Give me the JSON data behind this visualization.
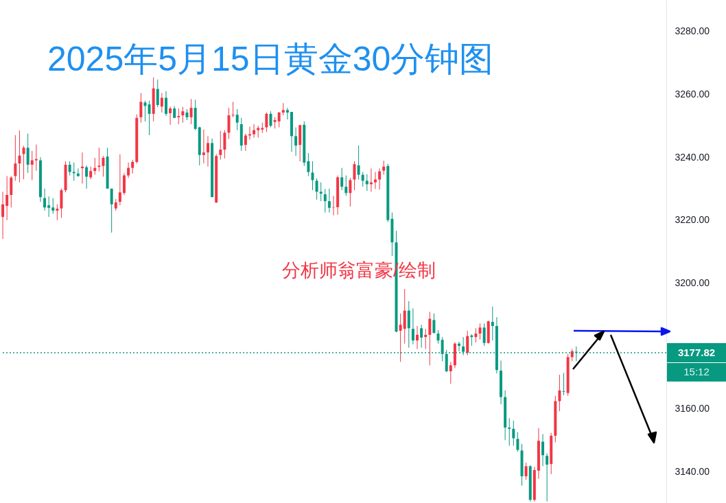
{
  "chart_data": {
    "type": "candlestick",
    "title": "2025年5月15日黄金30分钟图",
    "annotations": [
      "分析师翁富豪/绘制",
      "15:12"
    ],
    "categories": [
      null,
      null,
      null,
      null,
      null,
      null,
      null,
      null,
      null,
      null,
      null,
      null,
      null,
      null,
      null,
      null,
      null,
      null,
      null,
      null,
      null,
      null,
      null,
      null,
      null,
      null,
      null,
      null,
      null,
      null,
      null,
      null,
      null,
      null,
      null,
      null,
      null,
      null,
      null,
      null,
      null,
      null,
      null,
      null,
      null,
      null,
      null,
      null,
      null,
      null,
      null,
      null,
      null,
      null,
      null,
      null,
      null,
      null,
      null,
      null,
      null,
      null,
      null,
      null,
      null,
      null,
      null,
      null,
      null,
      null,
      null,
      null,
      null,
      null,
      null,
      null,
      null,
      null,
      null,
      null,
      null,
      null,
      null,
      null,
      null,
      null,
      null,
      null,
      null,
      null,
      null,
      null,
      null,
      null,
      null,
      null,
      null,
      null,
      null,
      null,
      null,
      null,
      null,
      null,
      null,
      null,
      null,
      null,
      null,
      null,
      null,
      null,
      null,
      null,
      null,
      null,
      null,
      null,
      null,
      null,
      null,
      null,
      null,
      null,
      null,
      null,
      null,
      null,
      null,
      null,
      null,
      null,
      null,
      null,
      null,
      null,
      null,
      null,
      null,
      null,
      null,
      null,
      null,
      null,
      null,
      null,
      null,
      null,
      null,
      null,
      null,
      null,
      null,
      null,
      null,
      null,
      null,
      null,
      null
    ],
    "ohlc": [
      [
        3221,
        3229,
        3214,
        3225
      ],
      [
        3224.5,
        3234,
        3220,
        3228
      ],
      [
        3228,
        3234,
        3224,
        3233.5
      ],
      [
        3234,
        3247,
        3232.5,
        3238
      ],
      [
        3238,
        3248.5,
        3232,
        3240.5
      ],
      [
        3241,
        3243.6,
        3233,
        3243
      ],
      [
        3243,
        3247.5,
        3235,
        3237.6
      ],
      [
        3237.6,
        3242,
        3232.7,
        3239
      ],
      [
        3239,
        3244,
        3235.7,
        3239.4
      ],
      [
        3239,
        3240,
        3225.8,
        3227.3
      ],
      [
        3227,
        3230,
        3223,
        3224
      ],
      [
        3224.7,
        3227.5,
        3221,
        3223.9
      ],
      [
        3224,
        3227,
        3222,
        3223
      ],
      [
        3223,
        3225,
        3220,
        3223.6
      ],
      [
        3223.7,
        3230,
        3220.7,
        3229.5
      ],
      [
        3229.5,
        3238.7,
        3228.8,
        3237.6
      ],
      [
        3237.6,
        3238.7,
        3234.2,
        3235.3
      ],
      [
        3235.3,
        3238.3,
        3232.5,
        3234.9
      ],
      [
        3234.8,
        3236.4,
        3233.8,
        3234
      ],
      [
        3236.5,
        3241.5,
        3231.6,
        3237
      ],
      [
        3236.8,
        3237.4,
        3230,
        3233.8
      ],
      [
        3233.6,
        3237,
        3233,
        3235.6
      ],
      [
        3235.6,
        3239.8,
        3234.4,
        3236.6
      ],
      [
        3236.9,
        3243,
        3235.5,
        3237.3
      ],
      [
        3237.2,
        3240.4,
        3233.8,
        3239.8
      ],
      [
        3240.2,
        3243,
        3230,
        3230
      ],
      [
        3230,
        3230,
        3216,
        3225
      ],
      [
        3223.7,
        3226.7,
        3223,
        3225.6
      ],
      [
        3225.8,
        3240.9,
        3224.7,
        3228.8
      ],
      [
        3228.6,
        3234.9,
        3228,
        3234.2
      ],
      [
        3234.2,
        3238.3,
        3233.4,
        3236.6
      ],
      [
        3236.6,
        3239.2,
        3234.8,
        3238.5
      ],
      [
        3238.5,
        3253.6,
        3238,
        3252.5
      ],
      [
        3252.7,
        3260.4,
        3251,
        3257.6
      ],
      [
        3257.4,
        3258,
        3251.4,
        3256.3
      ],
      [
        3256.8,
        3258,
        3247,
        3253.8
      ],
      [
        3253.8,
        3265.4,
        3251.4,
        3261.9
      ],
      [
        3261.7,
        3264.7,
        3255.9,
        3256.6
      ],
      [
        3256.1,
        3260.4,
        3254.2,
        3258.9
      ],
      [
        3258.9,
        3261,
        3253.1,
        3253.8
      ],
      [
        3254,
        3256.1,
        3250.3,
        3255.5
      ],
      [
        3255.5,
        3256.3,
        3252.5,
        3252.5
      ],
      [
        3252.7,
        3255.5,
        3250.5,
        3253.1
      ],
      [
        3253.3,
        3256,
        3251,
        3254.6
      ],
      [
        3254.2,
        3255.3,
        3251.8,
        3252.7
      ],
      [
        3252.7,
        3258.5,
        3250.5,
        3255.7
      ],
      [
        3255.7,
        3258.3,
        3248.6,
        3249
      ],
      [
        3249.5,
        3249.7,
        3237.4,
        3240.7
      ],
      [
        3240.7,
        3248.8,
        3238,
        3241.5
      ],
      [
        3241.5,
        3246.7,
        3237,
        3244.5
      ],
      [
        3244.5,
        3246,
        3227.3,
        3227.3
      ],
      [
        3225.6,
        3241,
        3225.4,
        3240.4
      ],
      [
        3240.7,
        3248.4,
        3239.2,
        3242.4
      ],
      [
        3242.4,
        3248.6,
        3239.6,
        3247.8
      ],
      [
        3247.8,
        3255.7,
        3245.8,
        3253.3
      ],
      [
        3253.3,
        3257.6,
        3252.7,
        3253.5
      ],
      [
        3253.5,
        3255.3,
        3248.6,
        3251
      ],
      [
        3250.5,
        3252.5,
        3242,
        3243.7
      ],
      [
        3243.9,
        3247.5,
        3242,
        3246.9
      ],
      [
        3246.9,
        3249.7,
        3245.6,
        3247.3
      ],
      [
        3247.3,
        3250.5,
        3246.2,
        3248.6
      ],
      [
        3248.6,
        3250,
        3246.2,
        3249.3
      ],
      [
        3248.8,
        3251,
        3247.7,
        3249.3
      ],
      [
        3249.5,
        3254.2,
        3248,
        3253.8
      ],
      [
        3253.8,
        3254.6,
        3249.5,
        3250
      ],
      [
        3251.2,
        3252.7,
        3249.1,
        3251.8
      ],
      [
        3251.4,
        3254.4,
        3249.5,
        3254.2
      ],
      [
        3254.2,
        3257.2,
        3253.3,
        3255
      ],
      [
        3255,
        3255.7,
        3252,
        3254.2
      ],
      [
        3254.4,
        3254.4,
        3241.7,
        3246.7
      ],
      [
        3246.7,
        3249.5,
        3240.4,
        3243.7
      ],
      [
        3243.9,
        3250.3,
        3238.7,
        3250.2
      ],
      [
        3250.3,
        3251.4,
        3237.2,
        3238.3
      ],
      [
        3238.7,
        3241.3,
        3234,
        3235.3
      ],
      [
        3235.1,
        3238.7,
        3229.5,
        3232.7
      ],
      [
        3232.5,
        3233.3,
        3226.5,
        3229
      ],
      [
        3229,
        3232,
        3226,
        3228.4
      ],
      [
        3228.2,
        3229.9,
        3222.4,
        3226
      ],
      [
        3226,
        3230,
        3222.4,
        3223.9
      ],
      [
        3224,
        3227.7,
        3221.5,
        3224.1
      ],
      [
        3224.1,
        3234.2,
        3221.7,
        3233.6
      ],
      [
        3233.6,
        3236.6,
        3229.5,
        3230.6
      ],
      [
        3230.6,
        3234.2,
        3227.7,
        3228.6
      ],
      [
        3228.6,
        3233.4,
        3224.3,
        3232.7
      ],
      [
        3232.9,
        3238.7,
        3229.5,
        3237.8
      ],
      [
        3237.4,
        3243.7,
        3232.9,
        3234.4
      ],
      [
        3234.4,
        3235.3,
        3230.6,
        3232.5
      ],
      [
        3232.5,
        3234.6,
        3229.3,
        3231.4
      ],
      [
        3231.4,
        3236.4,
        3229,
        3232
      ],
      [
        3232,
        3235.3,
        3229.9,
        3232.9
      ],
      [
        3232.9,
        3236.4,
        3229.7,
        3235.5
      ],
      [
        3235.7,
        3238.9,
        3234.4,
        3237
      ],
      [
        3237.2,
        3237.9,
        3219.4,
        3220
      ],
      [
        3220.4,
        3222.4,
        3208.6,
        3212.9
      ],
      [
        3212.9,
        3216.6,
        3184.3,
        3184.5
      ],
      [
        3184.8,
        3190.3,
        3174.9,
        3186.7
      ],
      [
        3185.4,
        3198.1,
        3180.7,
        3191.2
      ],
      [
        3191.2,
        3194.2,
        3179.4,
        3185.6
      ],
      [
        3185.4,
        3191.9,
        3180.5,
        3181.7
      ],
      [
        3181.7,
        3186.3,
        3179,
        3183.5
      ],
      [
        3185.6,
        3186.7,
        3179.4,
        3182.6
      ],
      [
        3182.8,
        3185.4,
        3179,
        3183.5
      ],
      [
        3183.5,
        3190.8,
        3173.8,
        3188.6
      ],
      [
        3188.2,
        3190.3,
        3183.9,
        3184.1
      ],
      [
        3183.9,
        3185,
        3180.7,
        3181.7
      ],
      [
        3181.9,
        3182.8,
        3175.1,
        3177.4
      ],
      [
        3177.4,
        3178.7,
        3171.6,
        3171.9
      ],
      [
        3171.9,
        3174.9,
        3167.9,
        3173.8
      ],
      [
        3173.8,
        3181.1,
        3172.9,
        3180.7
      ],
      [
        3180.7,
        3181.3,
        3178.3,
        3180
      ],
      [
        3179.8,
        3182.8,
        3177,
        3178.1
      ],
      [
        3177.8,
        3184.8,
        3177,
        3183.1
      ],
      [
        3183.3,
        3183.7,
        3180,
        3182.8
      ],
      [
        3182.8,
        3185.6,
        3181.1,
        3183.9
      ],
      [
        3183.9,
        3187.1,
        3182,
        3185.8
      ],
      [
        3185.8,
        3187.1,
        3180,
        3180.9
      ],
      [
        3180.9,
        3188,
        3180.7,
        3187.8
      ],
      [
        3187.6,
        3192.5,
        3181.7,
        3186.3
      ],
      [
        3186.3,
        3189.1,
        3171.2,
        3172.3
      ],
      [
        3172.1,
        3175.3,
        3161.4,
        3163.7
      ],
      [
        3163.7,
        3165.8,
        3150,
        3154
      ],
      [
        3154,
        3157,
        3148.2,
        3153.6
      ],
      [
        3153.6,
        3156.2,
        3148.2,
        3150.6
      ],
      [
        3150.4,
        3152.5,
        3146.3,
        3146.9
      ],
      [
        3146.7,
        3148.8,
        3135.5,
        3138.5
      ],
      [
        3138.5,
        3142.8,
        3137.4,
        3141.7
      ],
      [
        3141.7,
        3142,
        3130.5,
        3131
      ],
      [
        3131,
        3141.5,
        3130.5,
        3140.5
      ],
      [
        3140.3,
        3153.8,
        3137.7,
        3149.8
      ],
      [
        3149.5,
        3151.9,
        3141.7,
        3145.2
      ],
      [
        3145,
        3145.8,
        3130.5,
        3142.2
      ],
      [
        3142.4,
        3152.3,
        3139.2,
        3151.4
      ],
      [
        3151.4,
        3164.1,
        3149.3,
        3162.4
      ],
      [
        3162.4,
        3170.8,
        3159.2,
        3165.8
      ],
      [
        3165.6,
        3171.4,
        3164.3,
        3165.4
      ],
      [
        3165,
        3177.4,
        3164.1,
        3176.4
      ],
      [
        3176.4,
        3179,
        3175.1,
        3178.3
      ],
      [
        3178.1,
        3179.8,
        3175.1,
        3177.82
      ],
      null,
      null,
      null,
      null,
      null,
      null,
      null,
      null,
      null,
      null,
      null,
      null,
      null,
      null,
      null,
      null,
      null,
      null,
      null,
      null,
      null
    ],
    "colors": [
      "#f23645",
      "#f23645",
      "#f23645",
      "#f23645",
      "#f23645",
      "#f23645",
      "#089981",
      "#f23645",
      "#f23645",
      "#089981",
      "#089981",
      "#089981",
      "#089981",
      "#f23645",
      "#f23645",
      "#f23645",
      "#089981",
      "#089981",
      "#089981",
      "#f23645",
      "#089981",
      "#f23645",
      "#f23645",
      "#f23645",
      "#f23645",
      "#089981",
      "#089981",
      "#f23645",
      "#f23645",
      "#f23645",
      "#f23645",
      "#f23645",
      "#f23645",
      "#f23645",
      "#089981",
      "#089981",
      "#f23645",
      "#089981",
      "#f23645",
      "#089981",
      "#f23645",
      "#089981",
      "#f23645",
      "#f23645",
      "#089981",
      "#f23645",
      "#089981",
      "#089981",
      "#f23645",
      "#f23645",
      "#089981",
      "#f23645",
      "#f23645",
      "#f23645",
      "#f23645",
      "#f23645",
      "#089981",
      "#089981",
      "#f23645",
      "#f23645",
      "#f23645",
      "#f23645",
      "#f23645",
      "#f23645",
      "#089981",
      "#f23645",
      "#f23645",
      "#f23645",
      "#089981",
      "#089981",
      "#089981",
      "#f23645",
      "#089981",
      "#089981",
      "#089981",
      "#089981",
      "#089981",
      "#089981",
      "#089981",
      "#f23645",
      "#f23645",
      "#089981",
      "#089981",
      "#f23645",
      "#f23645",
      "#089981",
      "#089981",
      "#089981",
      "#f23645",
      "#f23645",
      "#f23645",
      "#f23645",
      "#089981",
      "#089981",
      "#089981",
      "#f23645",
      "#f23645",
      "#089981",
      "#089981",
      "#f23645",
      "#089981",
      "#f23645",
      "#f23645",
      "#089981",
      "#089981",
      "#089981",
      "#089981",
      "#f23645",
      "#f23645",
      "#089981",
      "#089981",
      "#f23645",
      "#089981",
      "#f23645",
      "#f23645",
      "#089981",
      "#f23645",
      "#089981",
      "#089981",
      "#089981",
      "#089981",
      "#089981",
      "#089981",
      "#089981",
      "#089981",
      "#f23645",
      "#089981",
      "#f23645",
      "#f23645",
      "#089981",
      "#089981",
      "#f23645",
      "#f23645",
      "#f23645",
      "#089981",
      "#f23645",
      "#f23645",
      "#089981",
      null,
      null,
      null,
      null,
      null,
      null,
      null,
      null,
      null,
      null,
      null,
      null,
      null,
      null,
      null,
      null,
      null,
      null,
      null,
      null,
      null
    ],
    "ylim": [
      3130,
      3290
    ],
    "yticks": [
      {
        "value": 3140,
        "label": "3140.00"
      },
      {
        "value": 3160,
        "label": "3160.00"
      },
      {
        "value": 3200,
        "label": "3200.00"
      },
      {
        "value": 3220,
        "label": "3220.00"
      },
      {
        "value": 3240,
        "label": "3240.00"
      },
      {
        "value": 3260,
        "label": "3260.00"
      },
      {
        "value": 3280,
        "label": "3280.00"
      }
    ],
    "ref_lines": [
      {
        "axis": "y",
        "value": 3177.82,
        "label": "3177.82",
        "color": "#089981",
        "line_style": "dotted"
      }
    ],
    "tick_labels": "y"
  }
}
